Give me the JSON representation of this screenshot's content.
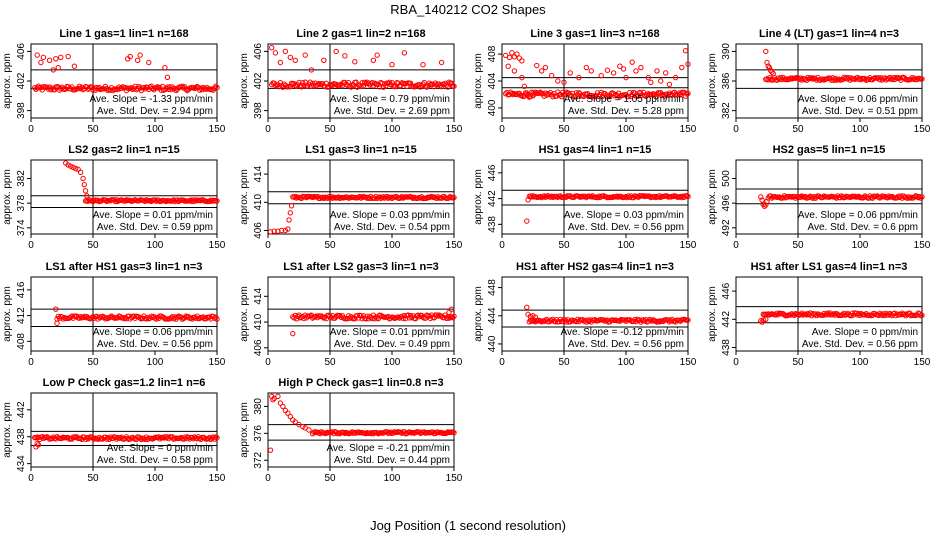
{
  "title": "RBA_140212  CO2 Shapes",
  "xlabel": "Jog Position (1 second resolution)",
  "chart_data": [
    {
      "type": "scatter",
      "title": "Line 1 gas=1 lin=1 n=168",
      "ylabel": "approx. ppm",
      "xlim": [
        0,
        150
      ],
      "xticks": [
        0,
        50,
        100,
        150
      ],
      "ylim": [
        397,
        407
      ],
      "yticks": [
        398,
        402,
        406
      ],
      "hlines": [
        401,
        403.5
      ],
      "vline": 50,
      "start": 3,
      "base": 401.0,
      "amp": 0.3,
      "outliers": [
        [
          5,
          405.5
        ],
        [
          8,
          404.5
        ],
        [
          10,
          405.2
        ],
        [
          15,
          404.8
        ],
        [
          18,
          403.5
        ],
        [
          20,
          405
        ],
        [
          22,
          403.8
        ],
        [
          24,
          405.2
        ],
        [
          30,
          405.3
        ],
        [
          35,
          404
        ],
        [
          78,
          405
        ],
        [
          80,
          405.3
        ],
        [
          86,
          404.8
        ],
        [
          88,
          405.5
        ],
        [
          95,
          404.5
        ],
        [
          108,
          403.8
        ],
        [
          110,
          402.5
        ]
      ],
      "annotations": [
        "Ave. Slope = -1.33 ppm/min",
        "Ave. Std. Dev. = 2.94 ppm"
      ]
    },
    {
      "type": "scatter",
      "title": "Line 2 gas=1 lin=2 n=168",
      "ylabel": "approx. ppm",
      "xlim": [
        0,
        150
      ],
      "xticks": [
        0,
        50,
        100,
        150
      ],
      "ylim": [
        397,
        407
      ],
      "yticks": [
        398,
        402,
        406
      ],
      "hlines": [
        401,
        403.5
      ],
      "vline": 50,
      "start": 3,
      "base": 401.5,
      "amp": 0.35,
      "outliers": [
        [
          3,
          406.5
        ],
        [
          6,
          405.8
        ],
        [
          10,
          404.5
        ],
        [
          14,
          406
        ],
        [
          18,
          405.2
        ],
        [
          22,
          404.8
        ],
        [
          30,
          405.5
        ],
        [
          35,
          403.5
        ],
        [
          45,
          404.8
        ],
        [
          55,
          406
        ],
        [
          62,
          405.4
        ],
        [
          70,
          404.6
        ],
        [
          85,
          404.8
        ],
        [
          88,
          405.5
        ],
        [
          100,
          404.2
        ],
        [
          110,
          405.8
        ],
        [
          125,
          404.2
        ],
        [
          140,
          404.5
        ]
      ],
      "annotations": [
        "Ave. Slope = 0.79 ppm/min",
        "Ave. Std. Dev. = 2.69 ppm"
      ]
    },
    {
      "type": "scatter",
      "title": "Line 3 gas=1 lin=3 n=168",
      "ylabel": "approx. ppm",
      "xlim": [
        0,
        150
      ],
      "xticks": [
        0,
        50,
        100,
        150
      ],
      "ylim": [
        398.5,
        409.5
      ],
      "yticks": [
        400,
        404,
        408
      ],
      "hlines": [
        403,
        404.5
      ],
      "vline": 50,
      "start": 3,
      "base": 402.0,
      "amp": 0.35,
      "outliers": [
        [
          3,
          407.8
        ],
        [
          6,
          407.5
        ],
        [
          8,
          408.2
        ],
        [
          10,
          407.6
        ],
        [
          12,
          408
        ],
        [
          14,
          407.4
        ],
        [
          16,
          407
        ],
        [
          5,
          406.2
        ],
        [
          10,
          405.5
        ],
        [
          16,
          404.5
        ],
        [
          18,
          403.2
        ],
        [
          20,
          402.2
        ],
        [
          22,
          401.6
        ],
        [
          25,
          401.8
        ],
        [
          28,
          406.3
        ],
        [
          32,
          405.5
        ],
        [
          35,
          406
        ],
        [
          40,
          404.8
        ],
        [
          45,
          404
        ],
        [
          50,
          403.8
        ],
        [
          55,
          405.2
        ],
        [
          62,
          404.5
        ],
        [
          68,
          406
        ],
        [
          72,
          405.5
        ],
        [
          80,
          404.8
        ],
        [
          85,
          405.6
        ],
        [
          90,
          405.2
        ],
        [
          95,
          406.2
        ],
        [
          98,
          405.8
        ],
        [
          100,
          404.5
        ],
        [
          105,
          406.8
        ],
        [
          108,
          405.5
        ],
        [
          112,
          406
        ],
        [
          118,
          404.5
        ],
        [
          120,
          403.8
        ],
        [
          125,
          405.5
        ],
        [
          128,
          404
        ],
        [
          132,
          405.2
        ],
        [
          135,
          403.5
        ],
        [
          140,
          404.5
        ],
        [
          145,
          406
        ],
        [
          148,
          408.5
        ],
        [
          150,
          406.5
        ]
      ],
      "annotations": [
        "Ave. Slope = 1.05 ppm/min",
        "Ave. Std. Dev. = 5.28 ppm"
      ]
    },
    {
      "type": "scatter",
      "title": "Line 4 (LT) gas=1 lin=4 n=3",
      "ylabel": "approx. ppm",
      "xlim": [
        0,
        150
      ],
      "xticks": [
        0,
        50,
        100,
        150
      ],
      "ylim": [
        381,
        391
      ],
      "yticks": [
        382,
        386,
        390
      ],
      "hlines": [
        385,
        387.5
      ],
      "vline": 50,
      "start": 24,
      "base": 386.3,
      "amp": 0.2,
      "outliers": [
        [
          24,
          390
        ],
        [
          25,
          388.5
        ],
        [
          26,
          388
        ],
        [
          27,
          387.8
        ],
        [
          28,
          387.4
        ],
        [
          29,
          387.2
        ],
        [
          30,
          387
        ]
      ],
      "annotations": [
        "Ave. Slope = 0.06 ppm/min",
        "Ave. Std. Dev. = 0.51 ppm"
      ]
    },
    {
      "type": "scatter",
      "title": "LS2 gas=2 lin=1 n=15",
      "ylabel": "approx. ppm",
      "xlim": [
        0,
        150
      ],
      "xticks": [
        0,
        50,
        100,
        150
      ],
      "ylim": [
        373,
        385
      ],
      "yticks": [
        374,
        378,
        382
      ],
      "hlines": [
        377.3,
        379.2
      ],
      "vline": 50,
      "start": 44,
      "base": 378.4,
      "amp": 0.15,
      "outliers": [
        [
          28,
          384.5
        ],
        [
          30,
          384.2
        ],
        [
          32,
          384
        ],
        [
          34,
          383.8
        ],
        [
          36,
          383.6
        ],
        [
          38,
          383.5
        ],
        [
          40,
          383
        ],
        [
          42,
          382
        ],
        [
          43,
          381
        ],
        [
          44,
          380
        ],
        [
          45,
          379.2
        ]
      ],
      "annotations": [
        "Ave. Slope = 0.01 ppm/min",
        "Ave. Std. Dev. = 0.59 ppm"
      ]
    },
    {
      "type": "scatter",
      "title": "LS1 gas=3 lin=1 n=15",
      "ylabel": "approx. ppm",
      "xlim": [
        0,
        150
      ],
      "xticks": [
        0,
        50,
        100,
        150
      ],
      "ylim": [
        405.5,
        416
      ],
      "yticks": [
        406,
        410,
        414
      ],
      "hlines": [
        409.8,
        411.5
      ],
      "vline": 50,
      "start": 20,
      "base": 410.7,
      "amp": 0.15,
      "outliers": [
        [
          2,
          405.8
        ],
        [
          5,
          405.9
        ],
        [
          8,
          405.9
        ],
        [
          11,
          406
        ],
        [
          14,
          406
        ],
        [
          16,
          406.2
        ],
        [
          17,
          407.5
        ],
        [
          18,
          408.5
        ],
        [
          19,
          409.5
        ]
      ],
      "annotations": [
        "Ave. Slope = 0.03 ppm/min",
        "Ave. Std. Dev. = 0.54 ppm"
      ]
    },
    {
      "type": "scatter",
      "title": "HS1 gas=4 lin=1 n=15",
      "ylabel": "approx. ppm",
      "xlim": [
        0,
        150
      ],
      "xticks": [
        0,
        50,
        100,
        150
      ],
      "ylim": [
        436.5,
        448
      ],
      "yticks": [
        438,
        442,
        446
      ],
      "hlines": [
        441,
        443.3
      ],
      "vline": 50,
      "start": 22,
      "base": 442.3,
      "amp": 0.15,
      "outliers": [
        [
          20,
          438.5
        ],
        [
          21,
          441.8
        ]
      ],
      "annotations": [
        "Ave. Slope = 0.03 ppm/min",
        "Ave. Std. Dev. = 0.56 ppm"
      ]
    },
    {
      "type": "scatter",
      "title": "HS2 gas=5 lin=1 n=15",
      "ylabel": "approx. ppm",
      "xlim": [
        0,
        150
      ],
      "xticks": [
        0,
        50,
        100,
        150
      ],
      "ylim": [
        491,
        503
      ],
      "yticks": [
        492,
        496,
        500
      ],
      "hlines": [
        495.9,
        498.3
      ],
      "vline": 50,
      "start": 26,
      "base": 497.0,
      "amp": 0.2,
      "outliers": [
        [
          20,
          497
        ],
        [
          21,
          496.5
        ],
        [
          22,
          495.8
        ],
        [
          23,
          495.5
        ],
        [
          24,
          495.7
        ],
        [
          25,
          496.3
        ]
      ],
      "annotations": [
        "Ave. Slope = 0.06 ppm/min",
        "Ave. Std. Dev. = 0.6 ppm"
      ]
    },
    {
      "type": "scatter",
      "title": "LS1 after HS1 gas=3 lin=1 n=3",
      "ylabel": "approx. ppm",
      "xlim": [
        0,
        150
      ],
      "xticks": [
        0,
        50,
        100,
        150
      ],
      "ylim": [
        406.5,
        418
      ],
      "yticks": [
        408,
        412,
        416
      ],
      "hlines": [
        410.3,
        413
      ],
      "vline": 50,
      "start": 22,
      "base": 411.7,
      "amp": 0.25,
      "outliers": [
        [
          20,
          413
        ],
        [
          21,
          411.5
        ],
        [
          21,
          410.8
        ]
      ],
      "annotations": [
        "Ave. Slope = 0.06 ppm/min",
        "Ave. Std. Dev. = 0.56 ppm"
      ]
    },
    {
      "type": "scatter",
      "title": "LS1 after LS2 gas=3 lin=1 n=3",
      "ylabel": "approx. ppm",
      "xlim": [
        0,
        150
      ],
      "xticks": [
        0,
        50,
        100,
        150
      ],
      "ylim": [
        405.5,
        417
      ],
      "yticks": [
        406,
        410,
        414
      ],
      "hlines": [
        409.4,
        412
      ],
      "vline": 50,
      "start": 20,
      "base": 410.8,
      "amp": 0.3,
      "outliers": [
        [
          20,
          408.2
        ],
        [
          148,
          412
        ],
        [
          146,
          411.5
        ]
      ],
      "annotations": [
        "Ave. Slope = 0.01 ppm/min",
        "Ave. Std. Dev. = 0.49 ppm"
      ]
    },
    {
      "type": "scatter",
      "title": "HS1 after HS2 gas=4 lin=1 n=3",
      "ylabel": "approx. ppm",
      "xlim": [
        0,
        150
      ],
      "xticks": [
        0,
        50,
        100,
        150
      ],
      "ylim": [
        439,
        449.5
      ],
      "yticks": [
        440,
        444,
        448
      ],
      "hlines": [
        442.4,
        444.8
      ],
      "vline": 50,
      "start": 22,
      "base": 443.3,
      "amp": 0.2,
      "outliers": [
        [
          20,
          445.2
        ],
        [
          21,
          444.2
        ],
        [
          23,
          443.9
        ],
        [
          25,
          444
        ],
        [
          27,
          443.8
        ]
      ],
      "annotations": [
        "Ave. Slope = -0.12 ppm/min",
        "Ave. Std. Dev. = 0.56 ppm"
      ]
    },
    {
      "type": "scatter",
      "title": "HS1 after LS1 gas=4 lin=1 n=3",
      "ylabel": "approx. ppm",
      "xlim": [
        0,
        150
      ],
      "xticks": [
        0,
        50,
        100,
        150
      ],
      "ylim": [
        437.5,
        448
      ],
      "yticks": [
        438,
        442,
        446
      ],
      "hlines": [
        441.5,
        443.8
      ],
      "vline": 50,
      "start": 22,
      "base": 442.7,
      "amp": 0.2,
      "outliers": [
        [
          20,
          441.8
        ],
        [
          21,
          441.6
        ],
        [
          22,
          441.9
        ],
        [
          24,
          442
        ]
      ],
      "annotations": [
        "Ave. Slope = 0 ppm/min",
        "Ave. Std. Dev. = 0.56 ppm"
      ]
    },
    {
      "type": "scatter",
      "title": "Low P Check gas=1.2 lin=1 n=6",
      "ylabel": "approx. ppm",
      "xlim": [
        0,
        150
      ],
      "xticks": [
        0,
        50,
        100,
        150
      ],
      "ylim": [
        433.5,
        444.5
      ],
      "yticks": [
        434,
        438,
        442
      ],
      "hlines": [
        436.7,
        438.8
      ],
      "vline": 50,
      "start": 3,
      "base": 437.8,
      "amp": 0.2,
      "outliers": [
        [
          4,
          436.5
        ],
        [
          5,
          437
        ],
        [
          6,
          436.8
        ]
      ],
      "annotations": [
        "Ave. Slope = 0 ppm/min",
        "Ave. Std. Dev. = 0.58 ppm"
      ]
    },
    {
      "type": "scatter",
      "title": "High P Check gas=1 lin=0.8 n=3",
      "ylabel": "approx. ppm",
      "xlim": [
        0,
        150
      ],
      "xticks": [
        0,
        50,
        100,
        150
      ],
      "ylim": [
        371,
        382
      ],
      "yticks": [
        372,
        376,
        380
      ],
      "hlines": [
        375,
        377.3
      ],
      "vline": 50,
      "start": 36,
      "base": 376.1,
      "amp": 0.15,
      "outliers": [
        [
          2,
          373.5
        ],
        [
          3,
          381.5
        ],
        [
          4,
          381
        ],
        [
          5,
          381.2
        ],
        [
          8,
          381.5
        ],
        [
          10,
          380.5
        ],
        [
          12,
          380
        ],
        [
          14,
          379.4
        ],
        [
          16,
          379
        ],
        [
          18,
          378.5
        ],
        [
          20,
          378
        ],
        [
          22,
          377.7
        ],
        [
          25,
          377.3
        ],
        [
          28,
          377
        ],
        [
          30,
          376.8
        ],
        [
          33,
          376.5
        ]
      ],
      "annotations": [
        "Ave. Slope = -0.21 ppm/min",
        "Ave. Std. Dev. = 0.44 ppm"
      ]
    }
  ],
  "colors": {
    "points": "#ff0000",
    "axes": "#000000"
  }
}
